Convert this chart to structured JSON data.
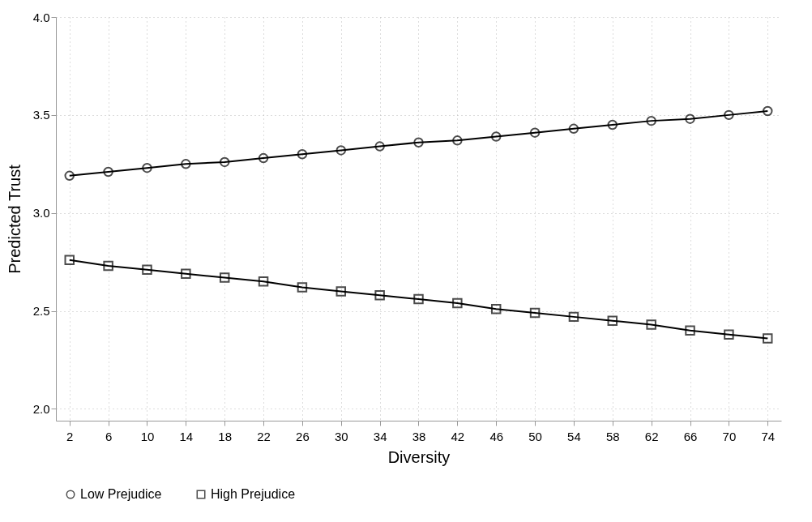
{
  "chart_data": {
    "type": "line",
    "xlabel": "Diversity",
    "ylabel": "Predicted Trust",
    "x": [
      2,
      6,
      10,
      14,
      18,
      22,
      26,
      30,
      34,
      38,
      42,
      46,
      50,
      54,
      58,
      62,
      66,
      70,
      74
    ],
    "series": [
      {
        "name": "Low Prejudice",
        "color": "#000000",
        "marker": "circle",
        "values": [
          3.19,
          3.21,
          3.23,
          3.25,
          3.26,
          3.28,
          3.3,
          3.32,
          3.34,
          3.36,
          3.37,
          3.39,
          3.41,
          3.43,
          3.45,
          3.47,
          3.48,
          3.5,
          3.52
        ]
      },
      {
        "name": "High Prejudice",
        "color": "#000000",
        "marker": "square",
        "values": [
          2.76,
          2.73,
          2.71,
          2.69,
          2.67,
          2.65,
          2.62,
          2.6,
          2.58,
          2.56,
          2.54,
          2.51,
          2.49,
          2.47,
          2.45,
          2.43,
          2.4,
          2.38,
          2.36
        ]
      }
    ],
    "xlim": [
      0.6,
      75.4
    ],
    "xticks": [
      2,
      6,
      10,
      14,
      18,
      22,
      26,
      30,
      34,
      38,
      42,
      46,
      50,
      54,
      58,
      62,
      66,
      70,
      74
    ],
    "ylim": [
      1.94,
      4.0
    ],
    "yticks": [
      {
        "value": 2,
        "label": "2.0"
      },
      {
        "value": 2.5,
        "label": "2.5"
      },
      {
        "value": 3,
        "label": "3.0"
      },
      {
        "value": 3.5,
        "label": "3.5"
      },
      {
        "value": 4,
        "label": "4.0"
      }
    ],
    "grid": true,
    "legend": "bottom",
    "line_style": "solid"
  }
}
